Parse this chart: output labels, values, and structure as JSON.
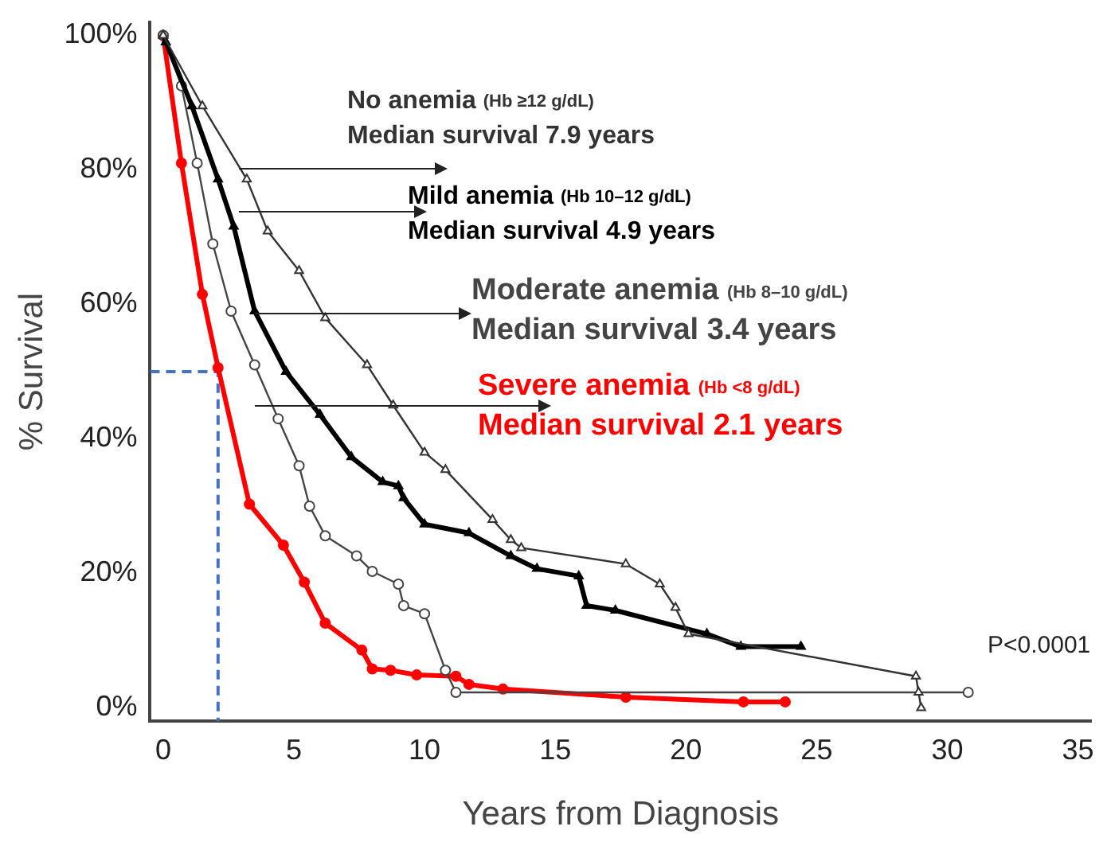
{
  "chart_data": {
    "type": "line",
    "xlabel": "Years from Diagnosis",
    "ylabel": "% Survival",
    "xlim": [
      -0.5,
      35.5
    ],
    "xticks": [
      0,
      5,
      10,
      15,
      20,
      25,
      30,
      35
    ],
    "ylim": [
      -2,
      102
    ],
    "yticks": [
      {
        "value": 0,
        "label": "0%"
      },
      {
        "value": 20,
        "label": "20%"
      },
      {
        "value": 40,
        "label": "40%"
      },
      {
        "value": 60,
        "label": "60%"
      },
      {
        "value": 80,
        "label": "80%"
      },
      {
        "value": 100,
        "label": "100%"
      }
    ],
    "grid": false,
    "legend": false,
    "series": [
      {
        "name": "No anemia (Hb ≥12 g/dL)",
        "color": "#333333",
        "marker": "triangle",
        "x": [
          0,
          1.5,
          3.2,
          4.0,
          5.2,
          6.2,
          7.8,
          8.8,
          10.0,
          10.8,
          12.6,
          13.3,
          13.7,
          17.7,
          19.0,
          19.6,
          20.1,
          28.8,
          28.9,
          29.0
        ],
        "values": [
          100,
          89.5,
          78.6,
          70.9,
          65,
          58,
          51,
          45,
          38,
          35.4,
          28,
          25,
          23.8,
          21.4,
          18.4,
          14.9,
          11.0,
          4.7,
          2.3,
          0
        ]
      },
      {
        "name": "Mild anemia (Hb 10–12 g/dL)",
        "color": "#000000",
        "marker": "triangle",
        "x": [
          0,
          0.1,
          1.1,
          2.1,
          2.7,
          3.5,
          4.7,
          6.0,
          7.2,
          8.4,
          9.0,
          9.2,
          10.0,
          11.7,
          13.3,
          14.3,
          15.9,
          16.2,
          17.3,
          20.8,
          22.1,
          24.4
        ],
        "values": [
          100,
          99,
          89.5,
          78.6,
          71.6,
          59,
          50,
          43.6,
          37.3,
          33.6,
          33,
          31.2,
          27.3,
          26,
          22.6,
          20.7,
          19.6,
          15.2,
          14.5,
          11,
          9.1,
          9.1
        ]
      },
      {
        "name": "Moderate anemia (Hb 8–10 g/dL)",
        "color": "#444444",
        "marker": "circle",
        "x": [
          0,
          0.7,
          1.3,
          1.9,
          2.6,
          3.5,
          4.4,
          5.2,
          5.6,
          6.2,
          7.4,
          8.0,
          9.0,
          9.2,
          10.0,
          10.8,
          11.2,
          30.8
        ],
        "values": [
          100,
          92.5,
          81,
          69,
          59,
          51,
          43,
          36,
          30,
          25.6,
          22.6,
          20.3,
          18.4,
          15.2,
          14,
          5.6,
          2.3,
          2.3
        ]
      },
      {
        "name": "Severe anemia (Hb <8 g/dL)",
        "color": "#ff0000",
        "marker": "circle",
        "x": [
          0,
          0.7,
          1.5,
          2.1,
          3.3,
          4.6,
          5.4,
          6.2,
          7.6,
          8.0,
          8.7,
          9.7,
          11.2,
          11.7,
          13.0,
          17.7,
          22.2,
          23.8
        ],
        "values": [
          100,
          81,
          61.5,
          50.6,
          30.3,
          24.2,
          18.7,
          12.6,
          8.6,
          5.8,
          5.6,
          4.9,
          4.7,
          3.5,
          2.8,
          1.6,
          0.9,
          0.9
        ]
      },
      {
        "type": "line",
        "color": "#4472c4",
        "line_style": "dashed",
        "marker": "none",
        "x": [
          -0.5,
          2.1,
          2.1
        ],
        "values": [
          50,
          50,
          -2
        ]
      }
    ],
    "annotations": [
      "Median survival 7.9 years",
      "Median survival 4.9 years",
      "Median survival 3.4 years",
      "Median survival 2.1 years",
      "P<0.0001"
    ]
  }
}
